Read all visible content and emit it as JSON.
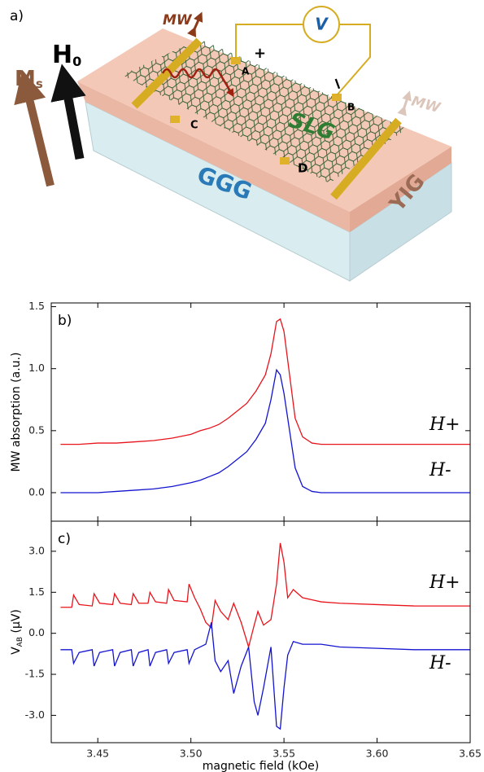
{
  "figure": {
    "panel_label": "a)",
    "mw_left": "MW",
    "h0_main": "H",
    "h0_sub": "0",
    "ms_main": "M",
    "ms_sub": "s",
    "plus": "+",
    "minus": "−",
    "voltmeter": "V",
    "contact_a": "A",
    "contact_b": "B",
    "contact_c": "C",
    "contact_d": "D",
    "slg": "SLG",
    "yig": "YIG",
    "ggg": "GGG",
    "mw_right": "MW"
  },
  "chart_data": [
    {
      "type": "line",
      "panel_label": "b)",
      "ylabel": "MW absorption (a.u.)",
      "xlim": [
        3.425,
        3.65
      ],
      "xticks": [
        3.45,
        3.5,
        3.55,
        3.6,
        3.65
      ],
      "xtick_labels": false,
      "ylim": [
        -0.23,
        1.53
      ],
      "yticks": [
        {
          "value": 0,
          "label": "0.0"
        },
        0.5,
        {
          "value": 1,
          "label": "1.0"
        },
        1.5
      ],
      "x": [
        3.43,
        3.44,
        3.45,
        3.46,
        3.47,
        3.48,
        3.49,
        3.5,
        3.505,
        3.51,
        3.515,
        3.52,
        3.525,
        3.53,
        3.535,
        3.54,
        3.543,
        3.546,
        3.548,
        3.55,
        3.553,
        3.556,
        3.56,
        3.565,
        3.57,
        3.58,
        3.6,
        3.62,
        3.65
      ],
      "series": [
        {
          "name": "H+",
          "color": "#e8141b",
          "values": [
            0.39,
            0.39,
            0.4,
            0.4,
            0.41,
            0.42,
            0.44,
            0.47,
            0.5,
            0.52,
            0.55,
            0.6,
            0.66,
            0.72,
            0.82,
            0.95,
            1.12,
            1.38,
            1.4,
            1.3,
            0.95,
            0.6,
            0.45,
            0.4,
            0.39,
            0.39,
            0.39,
            0.39,
            0.39
          ]
        },
        {
          "name": "H-",
          "color": "#1414d0",
          "values": [
            0,
            0,
            0,
            0.01,
            0.02,
            0.03,
            0.05,
            0.08,
            0.1,
            0.13,
            0.16,
            0.21,
            0.27,
            0.33,
            0.43,
            0.56,
            0.75,
            0.99,
            0.95,
            0.8,
            0.5,
            0.2,
            0.05,
            0.01,
            0,
            0,
            0,
            0,
            0
          ]
        }
      ]
    },
    {
      "type": "line",
      "panel_label": "c)",
      "ylabel": "V",
      "ylabel_sub": "AB",
      "ylabel_unit": " (μV)",
      "xlabel": "magnetic field (kOe)",
      "xlim": [
        3.425,
        3.65
      ],
      "xticks": [
        3.45,
        {
          "value": 3.5,
          "label": "3.50"
        },
        3.55,
        {
          "value": 3.6,
          "label": "3.60"
        },
        3.65
      ],
      "xtick_labels": true,
      "ylim": [
        -4.0,
        4.1
      ],
      "yticks": [
        {
          "value": -3,
          "label": "-3.0"
        },
        -1.5,
        {
          "value": 0,
          "label": "0.0"
        },
        1.5,
        {
          "value": 3,
          "label": "3.0"
        }
      ],
      "x": [
        3.43,
        3.436,
        3.437,
        3.44,
        3.447,
        3.448,
        3.451,
        3.458,
        3.459,
        3.462,
        3.468,
        3.469,
        3.472,
        3.477,
        3.478,
        3.481,
        3.487,
        3.488,
        3.491,
        3.498,
        3.499,
        3.502,
        3.505,
        3.508,
        3.511,
        3.513,
        3.516,
        3.52,
        3.523,
        3.527,
        3.531,
        3.534,
        3.536,
        3.539,
        3.543,
        3.546,
        3.548,
        3.55,
        3.552,
        3.555,
        3.56,
        3.57,
        3.58,
        3.6,
        3.62,
        3.65
      ],
      "series": [
        {
          "name": "H+",
          "color": "#e8141b",
          "values": [
            0.95,
            0.95,
            1.4,
            1.05,
            1.0,
            1.45,
            1.1,
            1.05,
            1.45,
            1.1,
            1.05,
            1.45,
            1.1,
            1.1,
            1.5,
            1.15,
            1.1,
            1.6,
            1.2,
            1.15,
            1.8,
            1.3,
            0.9,
            0.4,
            0.2,
            1.2,
            0.8,
            0.5,
            1.1,
            0.4,
            -0.5,
            0.3,
            0.8,
            0.3,
            0.5,
            1.8,
            3.3,
            2.6,
            1.3,
            1.6,
            1.3,
            1.15,
            1.1,
            1.05,
            1.0,
            1.0
          ]
        },
        {
          "name": "H-",
          "color": "#1414d0",
          "values": [
            -0.6,
            -0.6,
            -1.1,
            -0.7,
            -0.6,
            -1.2,
            -0.7,
            -0.6,
            -1.2,
            -0.7,
            -0.6,
            -1.2,
            -0.7,
            -0.6,
            -1.2,
            -0.7,
            -0.6,
            -1.1,
            -0.7,
            -0.6,
            -1.1,
            -0.6,
            -0.5,
            -0.4,
            0.4,
            -1.0,
            -1.4,
            -1.0,
            -2.2,
            -1.2,
            -0.5,
            -2.5,
            -3.0,
            -2.0,
            -0.5,
            -3.4,
            -3.5,
            -2.0,
            -0.8,
            -0.3,
            -0.4,
            -0.4,
            -0.5,
            -0.55,
            -0.6,
            -0.6
          ]
        }
      ]
    }
  ]
}
